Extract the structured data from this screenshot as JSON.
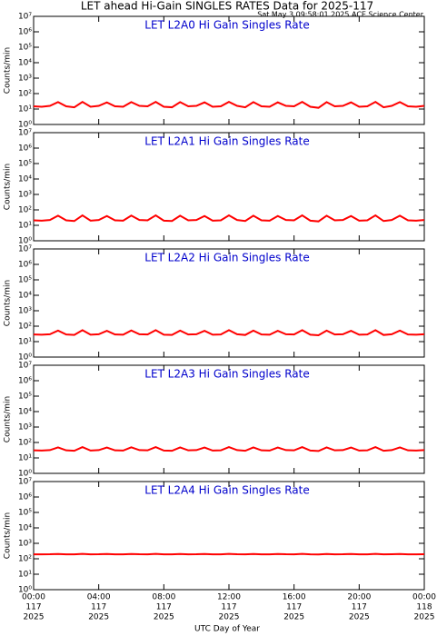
{
  "header": {
    "title": "LET ahead Hi-Gain SINGLES RATES Data for 2025-117",
    "subtitle": "Sat May  3 09:58:01 2025 ACE Science Center"
  },
  "chart_data": [
    {
      "type": "line",
      "title": "LET L2A0 Hi Gain Singles Rate",
      "ylabel": "Counts/min",
      "log_y": true,
      "x": [
        0,
        0.5,
        1,
        1.5,
        2,
        2.5,
        3,
        3.5,
        4,
        4.5,
        5,
        5.5,
        6,
        6.5,
        7,
        7.5,
        8,
        8.5,
        9,
        9.5,
        10,
        10.5,
        11,
        11.5,
        12,
        12.5,
        13,
        13.5,
        14,
        14.5,
        15,
        15.5,
        16,
        16.5,
        17,
        17.5,
        18,
        18.5,
        19,
        19.5,
        20,
        20.5,
        21,
        21.5,
        22,
        22.5,
        23,
        23.5,
        24
      ],
      "series": [
        {
          "name": "L2A0",
          "color": "#ff0000",
          "values": [
            15,
            14,
            16,
            28,
            15,
            13,
            29,
            14,
            16,
            27,
            15,
            14,
            28,
            16,
            15,
            29,
            14,
            13,
            28,
            15,
            16,
            27,
            14,
            15,
            29,
            16,
            13,
            28,
            15,
            14,
            27,
            16,
            15,
            29,
            14,
            12,
            28,
            15,
            16,
            27,
            14,
            15,
            29,
            13,
            16,
            28,
            15,
            14,
            16
          ]
        }
      ],
      "xlim": [
        0,
        24
      ],
      "xticks": [
        0,
        4,
        8,
        12,
        16,
        20,
        24
      ],
      "ylim": [
        1,
        10000000
      ],
      "yticks": [
        {
          "value": 1,
          "label": "10⁰"
        },
        {
          "value": 10,
          "label": "10¹"
        },
        {
          "value": 100,
          "label": "10²"
        },
        {
          "value": 1000,
          "label": "10³"
        },
        {
          "value": 10000,
          "label": "10⁴"
        },
        {
          "value": 100000,
          "label": "10⁵"
        },
        {
          "value": 1000000,
          "label": "10⁶"
        },
        {
          "value": 10000000,
          "label": "10⁷"
        }
      ]
    },
    {
      "type": "line",
      "title": "LET L2A1 Hi Gain Singles Rate",
      "ylabel": "Counts/min",
      "log_y": true,
      "x": [
        0,
        0.5,
        1,
        1.5,
        2,
        2.5,
        3,
        3.5,
        4,
        4.5,
        5,
        5.5,
        6,
        6.5,
        7,
        7.5,
        8,
        8.5,
        9,
        9.5,
        10,
        10.5,
        11,
        11.5,
        12,
        12.5,
        13,
        13.5,
        14,
        14.5,
        15,
        15.5,
        16,
        16.5,
        17,
        17.5,
        18,
        18.5,
        19,
        19.5,
        20,
        20.5,
        21,
        21.5,
        22,
        22.5,
        23,
        23.5,
        24
      ],
      "series": [
        {
          "name": "L2A1",
          "color": "#ff0000",
          "values": [
            21,
            20,
            22,
            42,
            21,
            19,
            44,
            20,
            22,
            40,
            21,
            20,
            43,
            22,
            21,
            44,
            20,
            19,
            42,
            21,
            22,
            40,
            20,
            21,
            44,
            22,
            19,
            42,
            21,
            20,
            40,
            22,
            21,
            44,
            20,
            18,
            42,
            21,
            22,
            40,
            20,
            21,
            44,
            19,
            22,
            42,
            21,
            20,
            22
          ]
        }
      ],
      "xlim": [
        0,
        24
      ],
      "xticks": [
        0,
        4,
        8,
        12,
        16,
        20,
        24
      ],
      "ylim": [
        1,
        10000000
      ],
      "yticks": [
        {
          "value": 1,
          "label": "10⁰"
        },
        {
          "value": 10,
          "label": "10¹"
        },
        {
          "value": 100,
          "label": "10²"
        },
        {
          "value": 1000,
          "label": "10³"
        },
        {
          "value": 10000,
          "label": "10⁴"
        },
        {
          "value": 100000,
          "label": "10⁵"
        },
        {
          "value": 1000000,
          "label": "10⁶"
        },
        {
          "value": 10000000,
          "label": "10⁷"
        }
      ]
    },
    {
      "type": "line",
      "title": "LET L2A2 Hi Gain Singles Rate",
      "ylabel": "Counts/min",
      "log_y": true,
      "x": [
        0,
        0.5,
        1,
        1.5,
        2,
        2.5,
        3,
        3.5,
        4,
        4.5,
        5,
        5.5,
        6,
        6.5,
        7,
        7.5,
        8,
        8.5,
        9,
        9.5,
        10,
        10.5,
        11,
        11.5,
        12,
        12.5,
        13,
        13.5,
        14,
        14.5,
        15,
        15.5,
        16,
        16.5,
        17,
        17.5,
        18,
        18.5,
        19,
        19.5,
        20,
        20.5,
        21,
        21.5,
        22,
        22.5,
        23,
        23.5,
        24
      ],
      "series": [
        {
          "name": "L2A2",
          "color": "#ff0000",
          "values": [
            29,
            28,
            30,
            52,
            29,
            27,
            55,
            28,
            30,
            50,
            29,
            28,
            53,
            30,
            29,
            55,
            28,
            27,
            52,
            29,
            30,
            50,
            28,
            29,
            55,
            30,
            27,
            52,
            29,
            28,
            50,
            30,
            29,
            55,
            28,
            26,
            52,
            29,
            30,
            50,
            28,
            29,
            55,
            27,
            30,
            52,
            29,
            28,
            30
          ]
        }
      ],
      "xlim": [
        0,
        24
      ],
      "xticks": [
        0,
        4,
        8,
        12,
        16,
        20,
        24
      ],
      "ylim": [
        1,
        10000000
      ],
      "yticks": [
        {
          "value": 1,
          "label": "10⁰"
        },
        {
          "value": 10,
          "label": "10¹"
        },
        {
          "value": 100,
          "label": "10²"
        },
        {
          "value": 1000,
          "label": "10³"
        },
        {
          "value": 10000,
          "label": "10⁴"
        },
        {
          "value": 100000,
          "label": "10⁵"
        },
        {
          "value": 1000000,
          "label": "10⁶"
        },
        {
          "value": 10000000,
          "label": "10⁷"
        }
      ]
    },
    {
      "type": "line",
      "title": "LET L2A3 Hi Gain Singles Rate",
      "ylabel": "Counts/min",
      "log_y": true,
      "x": [
        0,
        0.5,
        1,
        1.5,
        2,
        2.5,
        3,
        3.5,
        4,
        4.5,
        5,
        5.5,
        6,
        6.5,
        7,
        7.5,
        8,
        8.5,
        9,
        9.5,
        10,
        10.5,
        11,
        11.5,
        12,
        12.5,
        13,
        13.5,
        14,
        14.5,
        15,
        15.5,
        16,
        16.5,
        17,
        17.5,
        18,
        18.5,
        19,
        19.5,
        20,
        20.5,
        21,
        21.5,
        22,
        22.5,
        23,
        23.5,
        24
      ],
      "series": [
        {
          "name": "L2A3",
          "color": "#ff0000",
          "values": [
            31,
            30,
            32,
            48,
            31,
            29,
            50,
            30,
            32,
            47,
            31,
            30,
            49,
            32,
            31,
            50,
            30,
            29,
            48,
            31,
            32,
            47,
            30,
            31,
            50,
            32,
            29,
            48,
            31,
            30,
            47,
            32,
            31,
            50,
            30,
            28,
            48,
            31,
            32,
            47,
            30,
            31,
            50,
            29,
            32,
            48,
            31,
            30,
            32
          ]
        }
      ],
      "xlim": [
        0,
        24
      ],
      "xticks": [
        0,
        4,
        8,
        12,
        16,
        20,
        24
      ],
      "ylim": [
        1,
        10000000
      ],
      "yticks": [
        {
          "value": 1,
          "label": "10⁰"
        },
        {
          "value": 10,
          "label": "10¹"
        },
        {
          "value": 100,
          "label": "10²"
        },
        {
          "value": 1000,
          "label": "10³"
        },
        {
          "value": 10000,
          "label": "10⁴"
        },
        {
          "value": 100000,
          "label": "10⁵"
        },
        {
          "value": 1000000,
          "label": "10⁶"
        },
        {
          "value": 10000000,
          "label": "10⁷"
        }
      ]
    },
    {
      "type": "line",
      "title": "LET L2A4 Hi Gain Singles Rate",
      "ylabel": "Counts/min",
      "xlabel": "UTC Day of Year",
      "log_y": true,
      "x": [
        0,
        0.5,
        1,
        1.5,
        2,
        2.5,
        3,
        3.5,
        4,
        4.5,
        5,
        5.5,
        6,
        6.5,
        7,
        7.5,
        8,
        8.5,
        9,
        9.5,
        10,
        10.5,
        11,
        11.5,
        12,
        12.5,
        13,
        13.5,
        14,
        14.5,
        15,
        15.5,
        16,
        16.5,
        17,
        17.5,
        18,
        18.5,
        19,
        19.5,
        20,
        20.5,
        21,
        21.5,
        22,
        22.5,
        23,
        23.5,
        24
      ],
      "series": [
        {
          "name": "L2A4",
          "color": "#ff0000",
          "values": [
            195,
            193,
            196,
            205,
            194,
            192,
            206,
            195,
            196,
            204,
            194,
            193,
            205,
            196,
            195,
            206,
            193,
            192,
            205,
            194,
            196,
            204,
            193,
            195,
            206,
            196,
            192,
            205,
            194,
            193,
            204,
            196,
            195,
            206,
            193,
            191,
            205,
            194,
            196,
            204,
            193,
            195,
            206,
            192,
            196,
            205,
            194,
            193,
            196
          ]
        }
      ],
      "xlim": [
        0,
        24
      ],
      "xticks": [
        {
          "value": 0,
          "label": "00:00",
          "day": "117",
          "year": "2025"
        },
        {
          "value": 4,
          "label": "04:00",
          "day": "117",
          "year": "2025"
        },
        {
          "value": 8,
          "label": "08:00",
          "day": "117",
          "year": "2025"
        },
        {
          "value": 12,
          "label": "12:00",
          "day": "117",
          "year": "2025"
        },
        {
          "value": 16,
          "label": "16:00",
          "day": "117",
          "year": "2025"
        },
        {
          "value": 20,
          "label": "20:00",
          "day": "117",
          "year": "2025"
        },
        {
          "value": 24,
          "label": "00:00",
          "day": "118",
          "year": "2025"
        }
      ],
      "ylim": [
        1,
        10000000
      ],
      "yticks": [
        {
          "value": 1,
          "label": "10⁰"
        },
        {
          "value": 10,
          "label": "10¹"
        },
        {
          "value": 100,
          "label": "10²"
        },
        {
          "value": 1000,
          "label": "10³"
        },
        {
          "value": 10000,
          "label": "10⁴"
        },
        {
          "value": 100000,
          "label": "10⁵"
        },
        {
          "value": 1000000,
          "label": "10⁶"
        },
        {
          "value": 10000000,
          "label": "10⁷"
        }
      ]
    }
  ]
}
